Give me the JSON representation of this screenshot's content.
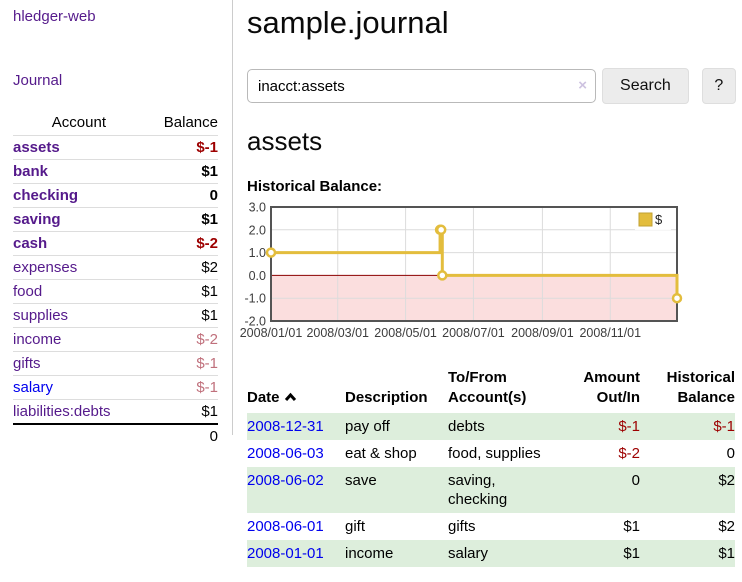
{
  "app": {
    "title": "hledger-web"
  },
  "sidebar": {
    "journal_link": "Journal",
    "accounts": {
      "header_account": "Account",
      "header_balance": "Balance",
      "rows": [
        {
          "label": "assets",
          "balance": "$-1",
          "level": 1,
          "bold": true,
          "link": "purple",
          "neg": "strong"
        },
        {
          "label": "bank",
          "balance": "$1",
          "level": 2,
          "bold": true,
          "link": "purple",
          "neg": "none"
        },
        {
          "label": "checking",
          "balance": "0",
          "level": 3,
          "bold": true,
          "link": "purple",
          "neg": "none"
        },
        {
          "label": "saving",
          "balance": "$1",
          "level": 3,
          "bold": true,
          "link": "purple",
          "neg": "none"
        },
        {
          "label": "cash",
          "balance": "$-2",
          "level": 2,
          "bold": true,
          "link": "purple",
          "neg": "strong"
        },
        {
          "label": "expenses",
          "balance": "$2",
          "level": 1,
          "bold": false,
          "link": "purple",
          "neg": "none"
        },
        {
          "label": "food",
          "balance": "$1",
          "level": 2,
          "bold": false,
          "link": "purple",
          "neg": "none"
        },
        {
          "label": "supplies",
          "balance": "$1",
          "level": 2,
          "bold": false,
          "link": "purple",
          "neg": "none"
        },
        {
          "label": "income",
          "balance": "$-2",
          "level": 1,
          "bold": false,
          "link": "purple",
          "neg": "soft"
        },
        {
          "label": "gifts",
          "balance": "$-1",
          "level": 2,
          "bold": false,
          "link": "purple",
          "neg": "soft"
        },
        {
          "label": "salary",
          "balance": "$-1",
          "level": 2,
          "bold": false,
          "link": "blue",
          "neg": "soft"
        },
        {
          "label": "liabilities:debts",
          "balance": "$1",
          "level": 1,
          "bold": false,
          "link": "purple",
          "neg": "none"
        }
      ],
      "total": "0"
    }
  },
  "main": {
    "title": "sample.journal",
    "search": {
      "value": "inacct:assets",
      "clear_icon": "×",
      "button_label": "Search",
      "help_label": "?"
    },
    "account_heading": "assets",
    "chart_label": "Historical Balance:"
  },
  "chart_data": {
    "type": "line",
    "style": "step",
    "title": "Historical Balance",
    "legend": {
      "label": "$",
      "position": "top-right"
    },
    "series": [
      {
        "name": "$",
        "color": "#e3bd3d",
        "points": [
          {
            "date": "2008-01-01",
            "value": 1
          },
          {
            "date": "2008-06-01",
            "value": 2
          },
          {
            "date": "2008-06-02",
            "value": 2
          },
          {
            "date": "2008-06-03",
            "value": 0
          },
          {
            "date": "2008-12-31",
            "value": -1
          }
        ]
      }
    ],
    "x_range": {
      "min": "2008-01-01",
      "max": "2008-12-31"
    },
    "x_ticks": [
      "2008/01/01",
      "2008/03/01",
      "2008/05/01",
      "2008/07/01",
      "2008/09/01",
      "2008/11/01"
    ],
    "x_tick_dates": [
      "2008-01-01",
      "2008-03-01",
      "2008-05-01",
      "2008-07-01",
      "2008-09-01",
      "2008-11-01"
    ],
    "y_ticks": [
      "3.0",
      "2.0",
      "1.0",
      "0.0",
      "-1.0",
      "-2.0"
    ],
    "ylim": [
      -2,
      3
    ],
    "grid": true,
    "zero_line_color": "#8b0000",
    "negative_region_color": "#fbdede",
    "border_color": "#545454",
    "grid_color": "#dcdcdc"
  },
  "register": {
    "headers": [
      "Date",
      "Description",
      "To/From Account(s)",
      "Amount Out/In",
      "Historical Balance"
    ],
    "sort_icon": "chevron-up",
    "rows": [
      {
        "date": "2008-12-31",
        "description": "pay off",
        "accounts": "debts",
        "amount": "$-1",
        "balance": "$-1",
        "shade": true
      },
      {
        "date": "2008-06-03",
        "description": "eat & shop",
        "accounts": "food, supplies",
        "amount": "$-2",
        "balance": "0",
        "shade": false
      },
      {
        "date": "2008-06-02",
        "description": "save",
        "accounts": "saving, checking",
        "amount": "0",
        "balance": "$2",
        "shade": true
      },
      {
        "date": "2008-06-01",
        "description": "gift",
        "accounts": "gifts",
        "amount": "$1",
        "balance": "$2",
        "shade": false
      },
      {
        "date": "2008-01-01",
        "description": "income",
        "accounts": "salary",
        "amount": "$1",
        "balance": "$1",
        "shade": true
      }
    ]
  }
}
